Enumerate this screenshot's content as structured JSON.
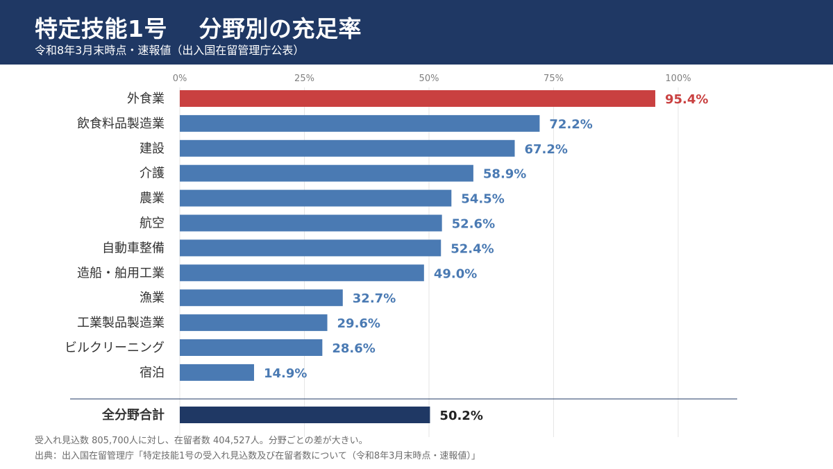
{
  "header": {
    "title": "特定技能1号　 分野別の充足率",
    "subtitle": "令和8年3月末時点・速報値（出入国在留管理庁公表）"
  },
  "colors": {
    "header_bg": "#1f3864",
    "bar_default": "#4a7ab3",
    "bar_highlight": "#c94040",
    "bar_total": "#1f3864",
    "grid": "#e6e6e6"
  },
  "chart_data": {
    "type": "bar",
    "orientation": "horizontal",
    "xlim": [
      0,
      100
    ],
    "ticks": [
      {
        "value": 0,
        "label": "0%"
      },
      {
        "value": 25,
        "label": "25%"
      },
      {
        "value": 50,
        "label": "50%"
      },
      {
        "value": 75,
        "label": "75%"
      },
      {
        "value": 100,
        "label": "100%"
      }
    ],
    "grid": true,
    "categories": [
      "外食業",
      "飲食料品製造業",
      "建設",
      "介護",
      "農業",
      "航空",
      "自動車整備",
      "造船・舶用工業",
      "漁業",
      "工業製品製造業",
      "ビルクリーニング",
      "宿泊"
    ],
    "values": [
      95.4,
      72.2,
      67.2,
      58.9,
      54.5,
      52.6,
      52.4,
      49.0,
      32.7,
      29.6,
      28.6,
      14.9
    ],
    "value_labels": [
      "95.4%",
      "72.2%",
      "67.2%",
      "58.9%",
      "54.5%",
      "52.6%",
      "52.4%",
      "49.0%",
      "32.7%",
      "29.6%",
      "28.6%",
      "14.9%"
    ],
    "highlight_index": 0,
    "total": {
      "category": "全分野合計",
      "value": 50.2,
      "value_label": "50.2%"
    }
  },
  "footer": {
    "note": "受入れ見込数  805,700人に対し、在留者数  404,527人。分野ごとの差が大きい。",
    "source": "出典：出入国在留管理庁「特定技能1号の受入れ見込数及び在留者数について（令和8年3月末時点・速報値）」"
  }
}
